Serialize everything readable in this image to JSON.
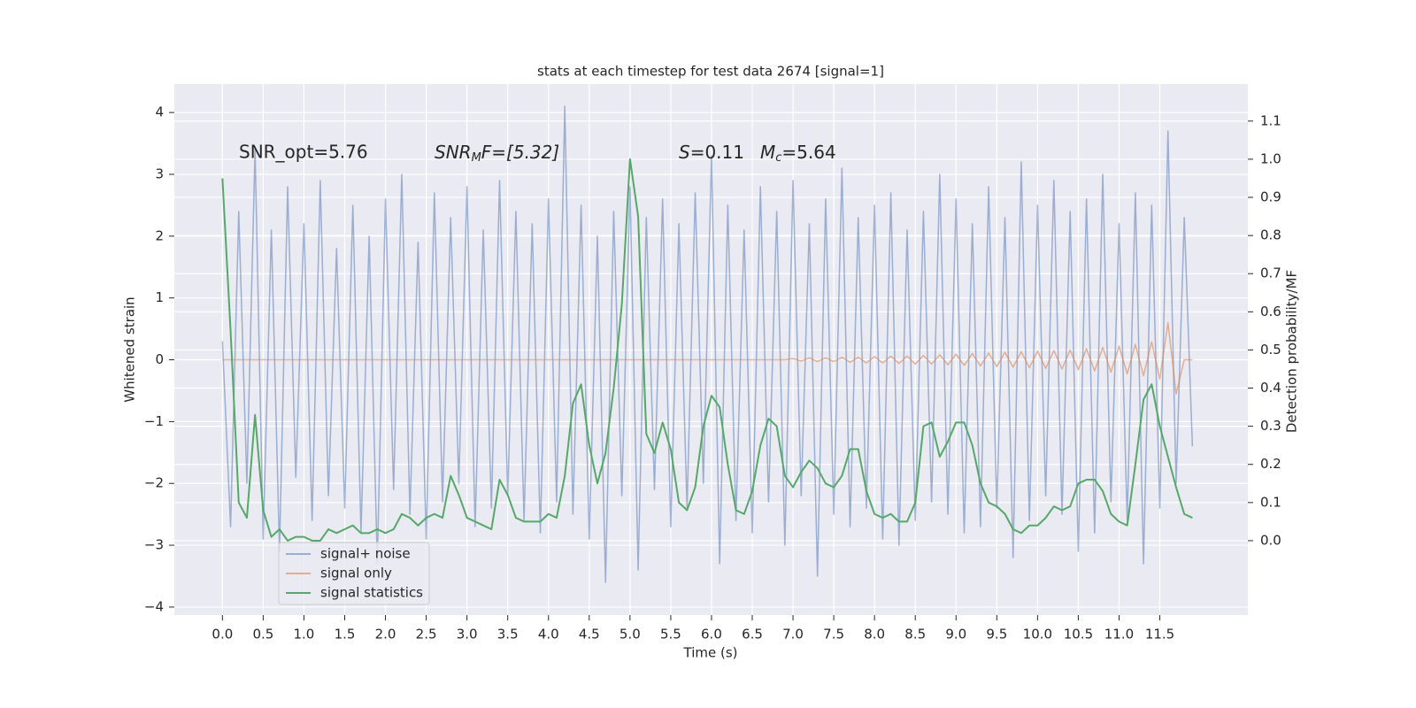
{
  "chart_data": {
    "type": "line",
    "title": "stats at each timestep for test data 2674 [signal=1]",
    "xlabel": "Time (s)",
    "ylabel": "Whitened strain",
    "y2label": "Detection probability/MF",
    "annotations": [
      "SNR_opt=5.76",
      "SNR",
      "M",
      "F=[5.32]",
      "S",
      "=0.11",
      "M",
      "c",
      "=5.64"
    ],
    "xlim": [
      -0.59,
      12.58
    ],
    "ylim": [
      -4.13,
      4.46
    ],
    "y2lim": [
      -0.195,
      1.197
    ],
    "xticks": [
      {
        "value": 0,
        "label": "0.0"
      },
      0.5,
      {
        "value": 1,
        "label": "1.0"
      },
      1.5,
      {
        "value": 2,
        "label": "2.0"
      },
      2.5,
      {
        "value": 3,
        "label": "3.0"
      },
      3.5,
      {
        "value": 4,
        "label": "4.0"
      },
      4.5,
      {
        "value": 5,
        "label": "5.0"
      },
      5.5,
      {
        "value": 6,
        "label": "6.0"
      },
      6.5,
      {
        "value": 7,
        "label": "7.0"
      },
      7.5,
      {
        "value": 8,
        "label": "8.0"
      },
      8.5,
      {
        "value": 9,
        "label": "9.0"
      },
      9.5,
      {
        "value": 10,
        "label": "10.0"
      },
      10.5,
      {
        "value": 11,
        "label": "11.0"
      },
      11.5
    ],
    "yticks": [
      {
        "value": -4,
        "label": "−4"
      },
      {
        "value": -3,
        "label": "−3"
      },
      {
        "value": -2,
        "label": "−2"
      },
      {
        "value": -1,
        "label": "−1"
      },
      0,
      1,
      2,
      3,
      4
    ],
    "y2ticks": [
      {
        "value": 0,
        "label": "0.0"
      },
      0.1,
      0.2,
      0.3,
      0.4,
      0.5,
      0.6,
      0.7,
      0.8,
      0.9,
      {
        "value": 1,
        "label": "1.0"
      },
      1.1
    ],
    "grid": true,
    "legend": "lower left",
    "x": [
      0,
      0.1,
      0.2,
      0.3,
      0.4,
      0.5,
      0.6,
      0.7,
      0.8,
      0.9,
      1,
      1.1,
      1.2,
      1.3,
      1.4,
      1.5,
      1.6,
      1.7,
      1.8,
      1.9,
      2,
      2.1,
      2.2,
      2.3,
      2.4,
      2.5,
      2.6,
      2.7,
      2.8,
      2.9,
      3,
      3.1,
      3.2,
      3.3,
      3.4,
      3.5,
      3.6,
      3.7,
      3.8,
      3.9,
      4,
      4.1,
      4.2,
      4.3,
      4.4,
      4.5,
      4.6,
      4.7,
      4.8,
      4.9,
      5,
      5.1,
      5.2,
      5.3,
      5.4,
      5.5,
      5.6,
      5.7,
      5.8,
      5.9,
      6,
      6.1,
      6.2,
      6.3,
      6.4,
      6.5,
      6.6,
      6.7,
      6.8,
      6.9,
      7,
      7.1,
      7.2,
      7.3,
      7.4,
      7.5,
      7.6,
      7.7,
      7.8,
      7.9,
      8,
      8.1,
      8.2,
      8.3,
      8.4,
      8.5,
      8.6,
      8.7,
      8.8,
      8.9,
      9,
      9.1,
      9.2,
      9.3,
      9.4,
      9.5,
      9.6,
      9.7,
      9.8,
      9.9,
      10,
      10.1,
      10.2,
      10.3,
      10.4,
      10.5,
      10.6,
      10.7,
      10.8,
      10.9,
      11,
      11.1,
      11.2,
      11.3,
      11.4,
      11.5,
      11.6,
      11.7,
      11.8,
      11.9
    ],
    "series": [
      {
        "name": "signal+ noise",
        "color": "#4c72b0",
        "opacity": 0.5,
        "values": [
          0.3,
          -2.7,
          2.4,
          -2.0,
          3.4,
          -2.9,
          2.1,
          -3.1,
          2.8,
          -1.9,
          2.2,
          -2.6,
          2.9,
          -2.2,
          1.8,
          -2.4,
          2.5,
          -2.8,
          2.0,
          -3.3,
          2.6,
          -2.1,
          3.0,
          -2.5,
          1.9,
          -2.9,
          2.7,
          -2.3,
          2.3,
          -2.0,
          2.8,
          -2.7,
          2.1,
          -2.4,
          2.9,
          -2.2,
          2.4,
          -2.6,
          2.2,
          -2.8,
          2.6,
          -2.3,
          4.1,
          -2.5,
          2.5,
          -2.9,
          2.0,
          -3.6,
          2.4,
          -2.2,
          2.8,
          -3.4,
          2.3,
          -2.1,
          2.6,
          -2.7,
          2.2,
          -2.4,
          2.7,
          -2.0,
          3.3,
          -3.3,
          2.5,
          -2.6,
          2.1,
          -2.8,
          2.8,
          -2.3,
          2.4,
          -3.0,
          2.9,
          -2.2,
          2.2,
          -3.5,
          2.6,
          -2.5,
          3.1,
          -2.7,
          2.3,
          -2.4,
          2.5,
          -2.9,
          2.7,
          -3.0,
          2.1,
          -2.6,
          2.4,
          -2.3,
          3.0,
          -2.5,
          2.6,
          -2.8,
          2.2,
          -2.7,
          2.8,
          -2.4,
          2.3,
          -3.2,
          3.2,
          -2.6,
          2.5,
          -2.2,
          2.9,
          -2.5,
          2.4,
          -3.1,
          2.6,
          -2.8,
          3.0,
          -2.3,
          2.2,
          -2.6,
          2.7,
          -3.3,
          2.5,
          -2.4,
          3.7,
          -2.0,
          2.3,
          -1.4
        ]
      },
      {
        "name": "signal only",
        "color": "#dd8452",
        "opacity": 0.6,
        "values": [
          0,
          0,
          0,
          0,
          0,
          0,
          0,
          0,
          0,
          0,
          0,
          0,
          0,
          0,
          0,
          0,
          0,
          0,
          0,
          0,
          0,
          0,
          0,
          0,
          0,
          0,
          0,
          0,
          0,
          0,
          0,
          0,
          0,
          0,
          0,
          0,
          0,
          0,
          0,
          0,
          0,
          0,
          0,
          0,
          0,
          0,
          0,
          0,
          0,
          0,
          0,
          0,
          0,
          0,
          0,
          0,
          0,
          0,
          0,
          0,
          0,
          0,
          0,
          0,
          0,
          0,
          0,
          0,
          0,
          0,
          0.02,
          -0.02,
          0.03,
          -0.03,
          0.03,
          -0.03,
          0.04,
          -0.04,
          0.04,
          -0.05,
          0.05,
          -0.05,
          0.06,
          -0.06,
          0.06,
          -0.07,
          0.07,
          -0.07,
          0.08,
          -0.08,
          0.09,
          -0.09,
          0.1,
          -0.1,
          0.11,
          -0.11,
          0.12,
          -0.12,
          0.13,
          -0.13,
          0.14,
          -0.14,
          0.15,
          -0.15,
          0.16,
          -0.16,
          0.18,
          -0.18,
          0.2,
          -0.2,
          0.22,
          -0.23,
          0.25,
          -0.26,
          0.29,
          -0.31,
          0.6,
          -0.55,
          0,
          0
        ]
      },
      {
        "name": "signal statistics",
        "color": "#55a868",
        "opacity": 1,
        "axis": "y2",
        "values": [
          0.95,
          0.55,
          0.1,
          0.06,
          0.33,
          0.08,
          0.01,
          0.03,
          0,
          0.01,
          0.01,
          0,
          0,
          0.03,
          0.02,
          0.03,
          0.04,
          0.02,
          0.02,
          0.03,
          0.02,
          0.03,
          0.07,
          0.06,
          0.04,
          0.06,
          0.07,
          0.06,
          0.17,
          0.12,
          0.06,
          0.05,
          0.04,
          0.03,
          0.16,
          0.12,
          0.06,
          0.05,
          0.05,
          0.05,
          0.07,
          0.06,
          0.17,
          0.36,
          0.41,
          0.25,
          0.15,
          0.23,
          0.4,
          0.62,
          1.0,
          0.85,
          0.28,
          0.23,
          0.31,
          0.24,
          0.1,
          0.08,
          0.14,
          0.3,
          0.38,
          0.35,
          0.2,
          0.08,
          0.07,
          0.13,
          0.25,
          0.32,
          0.3,
          0.17,
          0.14,
          0.18,
          0.21,
          0.19,
          0.15,
          0.14,
          0.17,
          0.24,
          0.24,
          0.13,
          0.07,
          0.06,
          0.07,
          0.05,
          0.05,
          0.1,
          0.3,
          0.31,
          0.22,
          0.26,
          0.31,
          0.31,
          0.25,
          0.15,
          0.1,
          0.09,
          0.07,
          0.03,
          0.02,
          0.04,
          0.04,
          0.06,
          0.09,
          0.08,
          0.09,
          0.15,
          0.16,
          0.16,
          0.13,
          0.07,
          0.05,
          0.04,
          0.2,
          0.37,
          0.41,
          0.3,
          0.22,
          0.14,
          0.07,
          0.06
        ]
      }
    ]
  }
}
